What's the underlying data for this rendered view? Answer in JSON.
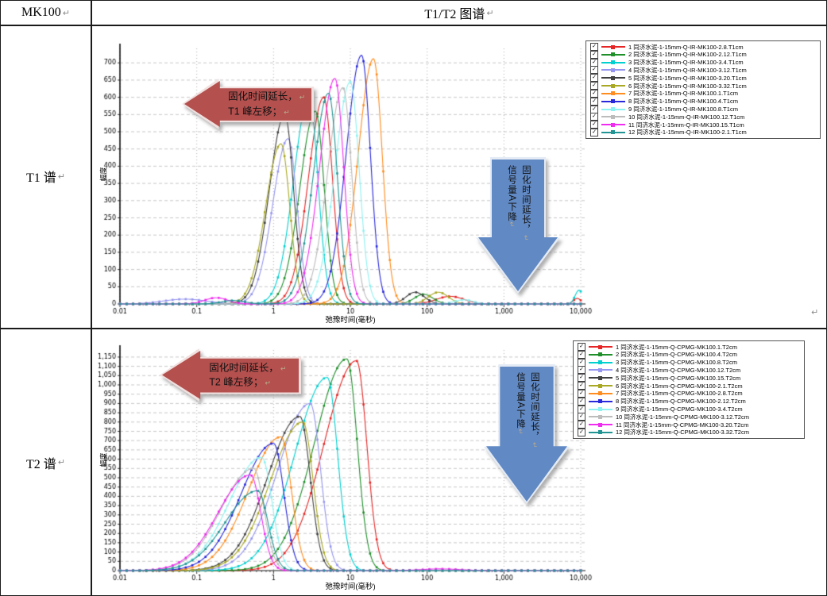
{
  "table": {
    "header": {
      "left_cell": "MK100",
      "right_cell": "T1/T2 图谱"
    },
    "row_labels": [
      "T1 谱",
      "T2 谱"
    ],
    "return_mark": "↵"
  },
  "chart_data": [
    {
      "id": "t1",
      "type": "line",
      "title": "T1 谱",
      "xlabel": "弛豫时间(毫秒)",
      "ylabel": "幅度",
      "xscale": "log",
      "xlim": [
        0.01,
        10000
      ],
      "ylim": [
        0,
        742
      ],
      "ytick_step": 50,
      "ytick_top": 700,
      "xtick_values": [
        0.01,
        0.1,
        1,
        10,
        100,
        1000,
        10000
      ],
      "xtick_labels": [
        "0.01",
        "0.1",
        "1",
        "10",
        "100",
        "1,000",
        "10,000"
      ],
      "grid": true,
      "legend_position": "top-right",
      "sigma_left": 0.2,
      "sigma_right": 0.115,
      "series": [
        {
          "name": "1 同济水泥-1-15mm-Q-IR-MK100-2.8.T1cm",
          "color": "#e62626",
          "checked": true,
          "peak_x": 4.5,
          "peak_y": 600,
          "extras": [
            {
              "x": 200,
              "y": 22,
              "s": 0.18
            },
            {
              "x": 9000,
              "y": 16,
              "s": 0.05
            }
          ]
        },
        {
          "name": "2 同济水泥-1-15mm-Q-IR-MK100-2.12.T1cm",
          "color": "#1f8f2a",
          "checked": true,
          "peak_x": 3.5,
          "peak_y": 560,
          "extras": [
            {
              "x": 90,
              "y": 28,
              "s": 0.12
            }
          ]
        },
        {
          "name": "3 同济水泥-1-15mm-Q-IR-MK100-3.4.T1cm",
          "color": "#00d0d0",
          "checked": true,
          "peak_x": 2.9,
          "peak_y": 600,
          "extras": [
            {
              "x": 9500,
              "y": 40,
              "s": 0.05
            }
          ]
        },
        {
          "name": "4 同济水泥-1-15mm-Q-IR-MK100-3.12.T1cm",
          "color": "#9696f0",
          "checked": true,
          "peak_x": 1.55,
          "peak_y": 480,
          "extras": [
            {
              "x": 0.07,
              "y": 14,
              "s": 0.28
            }
          ]
        },
        {
          "name": "5 同济水泥-1-15mm-Q-IR-MK100-3.20.T1cm",
          "color": "#404040",
          "checked": true,
          "peak_x": 1.4,
          "peak_y": 550,
          "extras": [
            {
              "x": 70,
              "y": 34,
              "s": 0.12
            }
          ]
        },
        {
          "name": "6 同济水泥-1-15mm-Q-IR-MK100-3.32.T1cm",
          "color": "#a8a824",
          "checked": true,
          "peak_x": 1.25,
          "peak_y": 465,
          "extras": [
            {
              "x": 140,
              "y": 34,
              "s": 0.13
            }
          ]
        },
        {
          "name": "7 同济水泥-1-15mm-Q-IR-MK100.1.T1cm",
          "color": "#ff8c1e",
          "checked": true,
          "peak_x": 20,
          "peak_y": 712,
          "extras": []
        },
        {
          "name": "8 同济水泥-1-15mm-Q-IR-MK100.4.T1cm",
          "color": "#2828dc",
          "checked": true,
          "peak_x": 14,
          "peak_y": 722,
          "extras": []
        },
        {
          "name": "9 同济水泥-1-15mm-Q-IR-MK100.8.T1cm",
          "color": "#8ef2f2",
          "checked": true,
          "peak_x": 10,
          "peak_y": 645,
          "extras": [
            {
              "x": 300,
              "y": 12,
              "s": 0.12
            }
          ]
        },
        {
          "name": "10 同济水泥-1-15mm-Q-IR-MK100.12.T1cm",
          "color": "#bcbcbc",
          "checked": true,
          "peak_x": 8,
          "peak_y": 628,
          "extras": []
        },
        {
          "name": "11 同济水泥-1-15mm-Q-IR-MK100.15.T1cm",
          "color": "#f02cf0",
          "checked": true,
          "peak_x": 6.3,
          "peak_y": 655,
          "extras": [
            {
              "x": 0.18,
              "y": 18,
              "s": 0.15
            }
          ]
        },
        {
          "name": "12 同济水泥-1-15mm-Q-IR-MK100-2.1.T1cm",
          "color": "#239494",
          "checked": true,
          "peak_x": 5.2,
          "peak_y": 612,
          "extras": [
            {
              "x": 0.3,
              "y": 10,
              "s": 0.15
            }
          ]
        }
      ],
      "annotations": {
        "left_arrow": {
          "lines": [
            "固化时间延长，",
            "T1 峰左移；"
          ],
          "fill": "#b4504e"
        },
        "down_arrow": {
          "lines": [
            "固化时间延长，",
            "信号量A下降"
          ],
          "fill": "#6189c4"
        }
      }
    },
    {
      "id": "t2",
      "type": "line",
      "title": "T2 谱",
      "xlabel": "弛豫时间(毫秒)",
      "ylabel": "幅度",
      "xscale": "log",
      "xlim": [
        0.01,
        10000
      ],
      "ylim": [
        0,
        1188
      ],
      "ytick_step": 50,
      "ytick_top": 1150,
      "xtick_values": [
        0.01,
        0.1,
        1,
        10,
        100,
        1000,
        10000
      ],
      "xtick_labels": [
        "0.01",
        "0.1",
        "1",
        "10",
        "100",
        "1,000",
        "10,000"
      ],
      "grid": true,
      "legend_position": "top-right",
      "sigma_left": 0.42,
      "sigma_right": 0.135,
      "series": [
        {
          "name": "1 同济水泥-1-15mm-Q-CPMG-MK100.1.T2cm",
          "color": "#e62626",
          "checked": true,
          "peak_x": 12,
          "peak_y": 1130,
          "extras": []
        },
        {
          "name": "2 同济水泥-1-15mm-Q-CPMG-MK100.4.T2cm",
          "color": "#1f8f2a",
          "checked": true,
          "peak_x": 9,
          "peak_y": 1140,
          "extras": []
        },
        {
          "name": "3 同济水泥-1-15mm-Q-CPMG-MK100.8.T2cm",
          "color": "#00d0d0",
          "checked": true,
          "peak_x": 5,
          "peak_y": 1040,
          "extras": []
        },
        {
          "name": "4 同济水泥-1-15mm-Q-CPMG-MK100.12.T2cm",
          "color": "#9696f0",
          "checked": true,
          "peak_x": 3,
          "peak_y": 900,
          "extras": []
        },
        {
          "name": "5 同济水泥-1-15mm-Q-CPMG-MK100.15.T2cm",
          "color": "#404040",
          "checked": true,
          "peak_x": 2.2,
          "peak_y": 830,
          "extras": []
        },
        {
          "name": "6 同济水泥-1-15mm-Q-CPMG-MK100-2.1.T2cm",
          "color": "#a8a824",
          "checked": true,
          "peak_x": 2.4,
          "peak_y": 800,
          "extras": []
        },
        {
          "name": "7 同济水泥-1-15mm-Q-CPMG-MK100-2.8.T2cm",
          "color": "#ff8c1e",
          "checked": true,
          "peak_x": 1.25,
          "peak_y": 720,
          "extras": []
        },
        {
          "name": "8 同济水泥-1-15mm-Q-CPMG-MK100-2.12.T2cm",
          "color": "#2828dc",
          "checked": true,
          "peak_x": 1.0,
          "peak_y": 685,
          "extras": []
        },
        {
          "name": "9 同济水泥-1-15mm-Q-CPMG-MK100-3.4.T2cm",
          "color": "#8ef2f2",
          "checked": true,
          "peak_x": 0.7,
          "peak_y": 610,
          "extras": []
        },
        {
          "name": "10 同济水泥-1-15mm-Q-CPMG-MK100-3.12.T2cm",
          "color": "#bcbcbc",
          "checked": true,
          "peak_x": 0.55,
          "peak_y": 550,
          "extras": []
        },
        {
          "name": "11 同济水泥-1-15mm-Q-CPMG-MK100-3.20.T2cm",
          "color": "#f02cf0",
          "checked": true,
          "peak_x": 0.5,
          "peak_y": 515,
          "extras": [
            {
              "x": 150,
              "y": 9,
              "s": 0.25
            }
          ]
        },
        {
          "name": "12 同济水泥-1-15mm-Q-CPMG-MK100-3.32.T2cm",
          "color": "#239494",
          "checked": true,
          "peak_x": 0.62,
          "peak_y": 430,
          "extras": []
        }
      ],
      "annotations": {
        "left_arrow": {
          "lines": [
            "固化时间延长，",
            "T2 峰左移；"
          ],
          "fill": "#b4504e"
        },
        "down_arrow": {
          "lines": [
            "固化时间延长，",
            "信号量A下降"
          ],
          "fill": "#6189c4"
        }
      }
    }
  ]
}
